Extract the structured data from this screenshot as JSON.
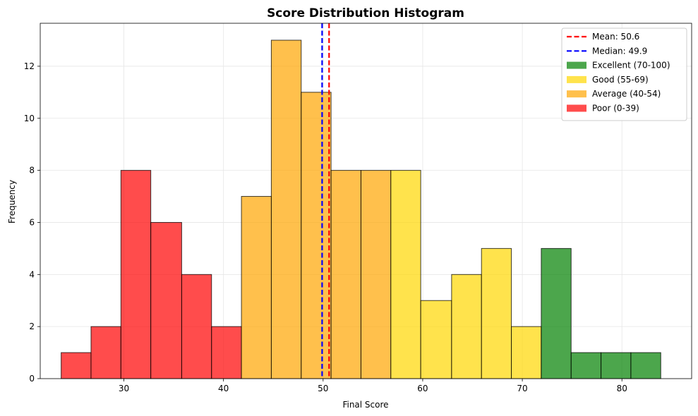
{
  "chart_data": {
    "type": "bar",
    "title": "Score Distribution Histogram",
    "xlabel": "Final Score",
    "ylabel": "Frequency",
    "xlim": [
      21.6,
      87.0
    ],
    "ylim": [
      0,
      13.65
    ],
    "xticks": [
      30,
      40,
      50,
      60,
      70,
      80
    ],
    "yticks": [
      0,
      2,
      4,
      6,
      8,
      10,
      12
    ],
    "grid": true,
    "legend_position": "top-right",
    "bins": [
      {
        "x0": 23.7,
        "x1": 26.7,
        "count": 1,
        "category": "poor"
      },
      {
        "x0": 26.7,
        "x1": 29.7,
        "count": 2,
        "category": "poor"
      },
      {
        "x0": 29.7,
        "x1": 32.7,
        "count": 8,
        "category": "poor"
      },
      {
        "x0": 32.7,
        "x1": 35.8,
        "count": 6,
        "category": "poor"
      },
      {
        "x0": 35.8,
        "x1": 38.8,
        "count": 4,
        "category": "poor"
      },
      {
        "x0": 38.8,
        "x1": 41.8,
        "count": 2,
        "category": "poor"
      },
      {
        "x0": 41.8,
        "x1": 44.8,
        "count": 7,
        "category": "average"
      },
      {
        "x0": 44.8,
        "x1": 47.8,
        "count": 13,
        "category": "average"
      },
      {
        "x0": 47.8,
        "x1": 50.8,
        "count": 11,
        "category": "average"
      },
      {
        "x0": 50.8,
        "x1": 53.8,
        "count": 8,
        "category": "average"
      },
      {
        "x0": 53.8,
        "x1": 56.8,
        "count": 8,
        "category": "average"
      },
      {
        "x0": 56.8,
        "x1": 59.8,
        "count": 8,
        "category": "good"
      },
      {
        "x0": 59.8,
        "x1": 62.9,
        "count": 3,
        "category": "good"
      },
      {
        "x0": 62.9,
        "x1": 65.9,
        "count": 4,
        "category": "good"
      },
      {
        "x0": 65.9,
        "x1": 68.9,
        "count": 5,
        "category": "good"
      },
      {
        "x0": 68.9,
        "x1": 71.9,
        "count": 2,
        "category": "good"
      },
      {
        "x0": 71.9,
        "x1": 74.9,
        "count": 5,
        "category": "excellent"
      },
      {
        "x0": 74.9,
        "x1": 77.9,
        "count": 1,
        "category": "excellent"
      },
      {
        "x0": 77.9,
        "x1": 80.9,
        "count": 1,
        "category": "excellent"
      },
      {
        "x0": 80.9,
        "x1": 83.9,
        "count": 1,
        "category": "excellent"
      }
    ],
    "categories": {
      "excellent": {
        "label": "Excellent (70-100)",
        "color": "#008000"
      },
      "good": {
        "label": "Good (55-69)",
        "color": "#ffd700"
      },
      "average": {
        "label": "Average (40-54)",
        "color": "#ffa500"
      },
      "poor": {
        "label": "Poor (0-39)",
        "color": "#ff0000"
      }
    },
    "reference_lines": [
      {
        "label": "Mean: 50.6",
        "value": 50.6,
        "color": "#ff0000",
        "style": "dashed"
      },
      {
        "label": "Median: 49.9",
        "value": 49.9,
        "color": "#0000ff",
        "style": "dashed"
      }
    ],
    "legend_order": [
      "mean",
      "median",
      "excellent",
      "good",
      "average",
      "poor"
    ]
  }
}
